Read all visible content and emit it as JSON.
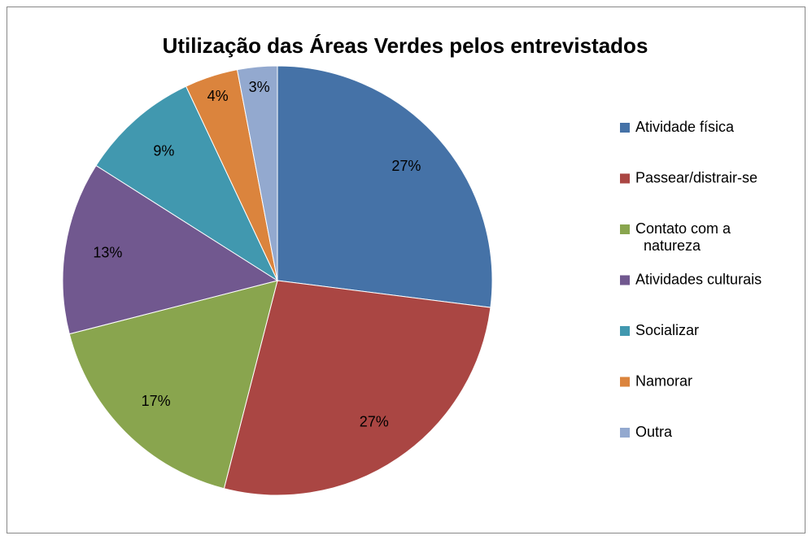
{
  "chart_data": {
    "type": "pie",
    "title": "Utilização das Áreas Verdes pelos entrevistados",
    "categories": [
      "Atividade física",
      "Passear/distrair-se",
      "Contato com a natureza",
      "Atividades culturais",
      "Socializar",
      "Namorar",
      "Outra"
    ],
    "values": [
      27,
      27,
      17,
      13,
      9,
      4,
      3
    ],
    "value_labels": [
      "27%",
      "27%",
      "17%",
      "13%",
      "9%",
      "4%",
      "3%"
    ],
    "colors": [
      "#4572a7",
      "#aa4643",
      "#89a54e",
      "#71588f",
      "#4198af",
      "#db843d",
      "#93a9cf"
    ],
    "legend": "right"
  }
}
